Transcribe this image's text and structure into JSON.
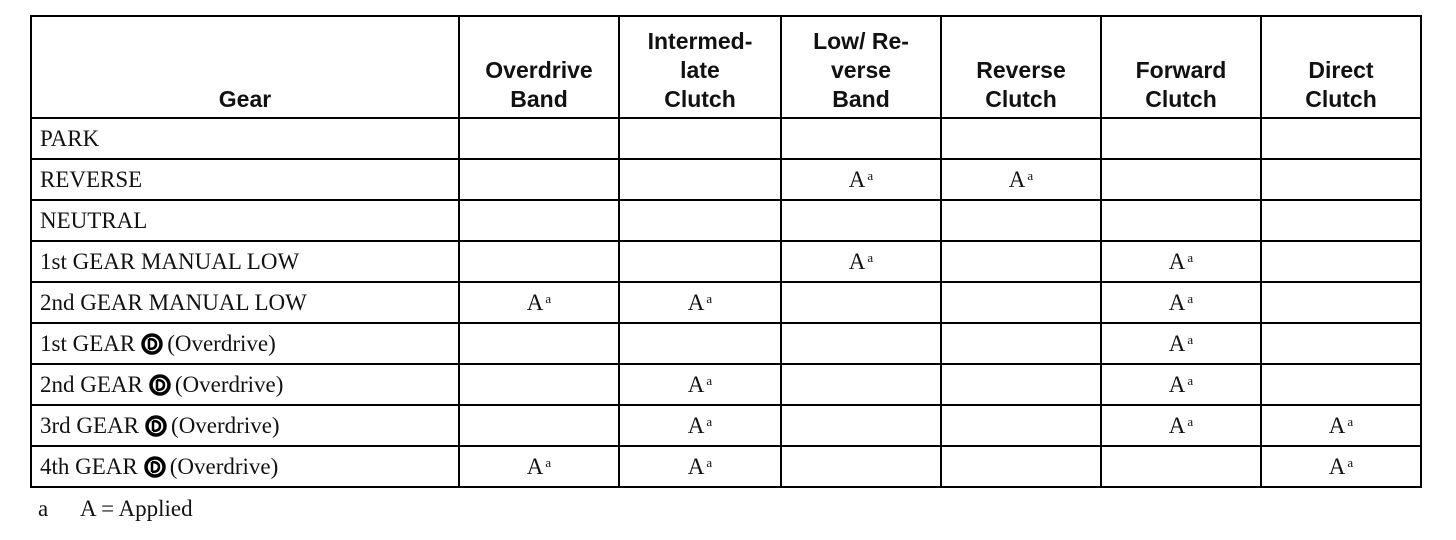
{
  "table": {
    "header": [
      [
        "Gear"
      ],
      [
        "Overdrive",
        "Band"
      ],
      [
        "Intermed-",
        "late",
        "Clutch"
      ],
      [
        "Low/ Re-",
        "verse",
        "Band"
      ],
      [
        "Reverse",
        "Clutch"
      ],
      [
        "Forward",
        "Clutch"
      ],
      [
        "Direct",
        "Clutch"
      ]
    ],
    "rows": [
      {
        "gear": "PARK",
        "cells": [
          null,
          null,
          null,
          null,
          null,
          null
        ]
      },
      {
        "gear": "REVERSE",
        "cells": [
          null,
          null,
          {
            "text": "A",
            "note": "a"
          },
          {
            "text": "A",
            "note": "a"
          },
          null,
          null
        ]
      },
      {
        "gear": "NEUTRAL",
        "cells": [
          null,
          null,
          null,
          null,
          null,
          null
        ]
      },
      {
        "gear": "1st GEAR MANUAL LOW",
        "cells": [
          null,
          null,
          {
            "text": "A",
            "note": "a"
          },
          null,
          {
            "text": "A",
            "note": "a"
          },
          null
        ]
      },
      {
        "gear": "2nd GEAR MANUAL LOW",
        "cells": [
          {
            "text": "A",
            "note": "a"
          },
          {
            "text": "A",
            "note": "a"
          },
          null,
          null,
          {
            "text": "A",
            "note": "a"
          },
          null
        ]
      },
      {
        "gear": "1st GEAR",
        "suffix": "(Overdrive)",
        "cells": [
          null,
          null,
          null,
          null,
          {
            "text": "A",
            "note": "a"
          },
          null
        ]
      },
      {
        "gear": "2nd GEAR",
        "suffix": "(Overdrive)",
        "cells": [
          null,
          {
            "text": "A",
            "note": "a"
          },
          null,
          null,
          {
            "text": "A",
            "note": "a"
          },
          null
        ]
      },
      {
        "gear": "3rd GEAR",
        "suffix": "(Overdrive)",
        "cells": [
          null,
          {
            "text": "A",
            "note": "a"
          },
          null,
          null,
          {
            "text": "A",
            "note": "a"
          },
          {
            "text": "A",
            "note": "a"
          }
        ]
      },
      {
        "gear": "4th GEAR",
        "suffix": "(Overdrive)",
        "cells": [
          {
            "text": "A",
            "note": "a"
          },
          {
            "text": "A",
            "note": "a"
          },
          null,
          null,
          null,
          {
            "text": "A",
            "note": "a"
          }
        ]
      }
    ]
  },
  "footnote": {
    "marker": "a",
    "text": "A = Applied"
  }
}
